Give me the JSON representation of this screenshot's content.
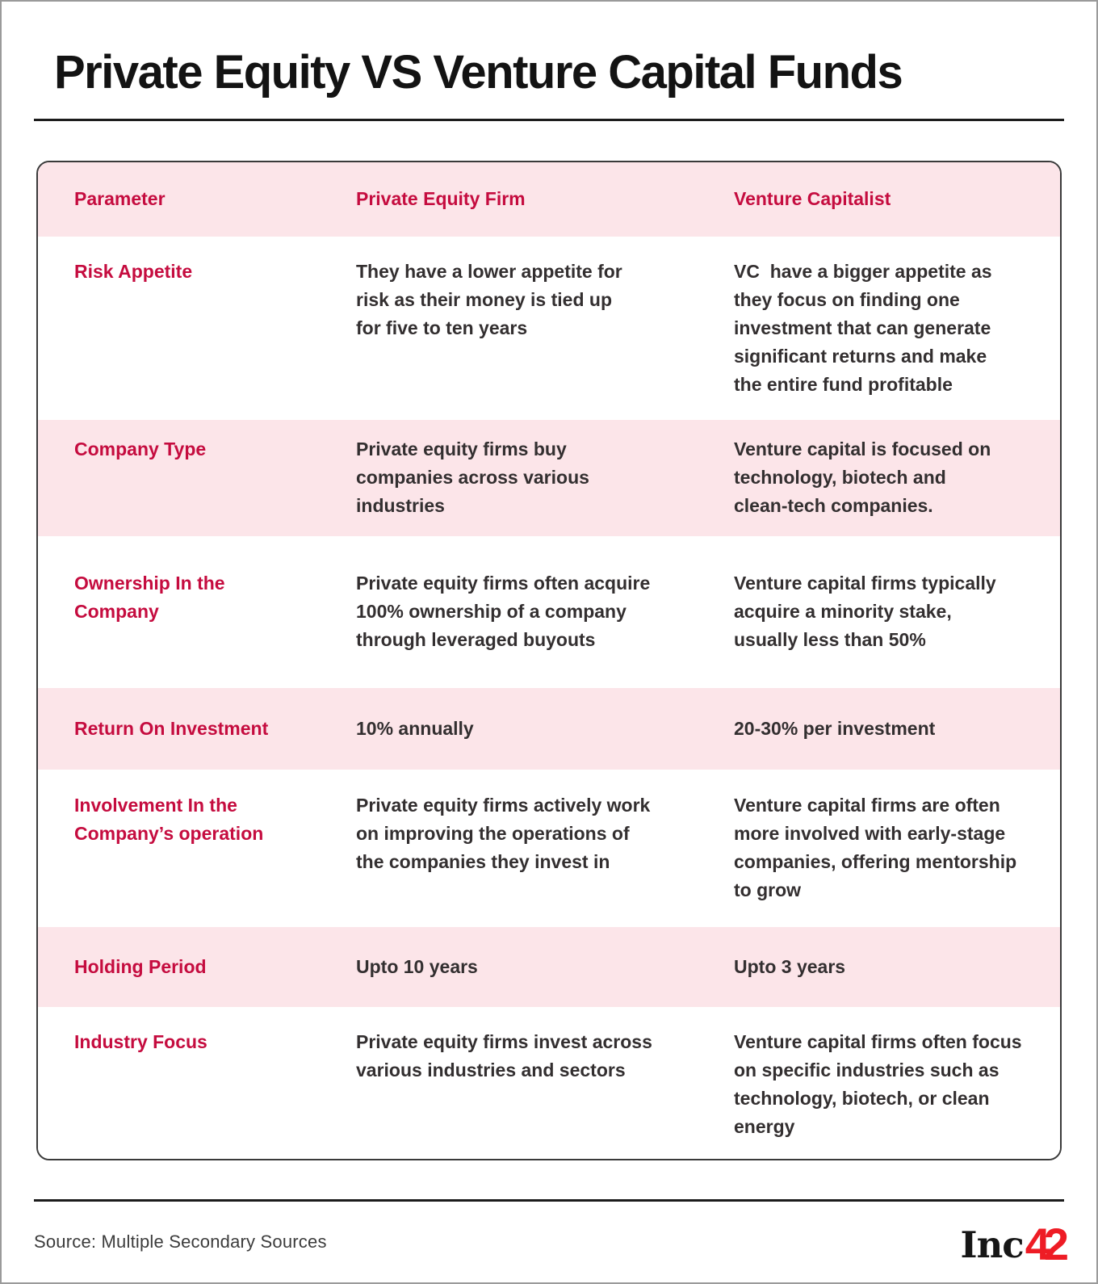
{
  "header": {
    "title": "Private Equity VS Venture Capital Funds"
  },
  "table": {
    "columns": [
      "Parameter",
      "Private Equity Firm",
      "Venture Capitalist"
    ],
    "rows": [
      {
        "label": "Risk Appetite",
        "pe": "They have a lower appetite for\nrisk as their money is tied up\nfor five to ten years",
        "vc": "VC  have a bigger appetite as\nthey focus on finding one\ninvestment that can generate\nsignificant returns and make\nthe entire fund profitable"
      },
      {
        "label": "Company Type",
        "pe": "Private equity firms buy\ncompanies across various\nindustries",
        "vc": "Venture capital is focused on\ntechnology, biotech and\nclean-tech companies."
      },
      {
        "label": "Ownership In the\nCompany",
        "pe": "Private equity firms often acquire\n100% ownership of a company\nthrough leveraged buyouts",
        "vc": "Venture capital firms typically\nacquire a minority stake,\nusually less than 50%"
      },
      {
        "label": "Return On Investment",
        "pe": "10% annually",
        "vc": "20-30% per investment"
      },
      {
        "label": "Involvement In the\nCompany’s operation",
        "pe": "Private equity firms actively work\non improving the operations of\nthe companies they invest in",
        "vc": "Venture capital firms are often\nmore involved with early-stage\ncompanies, offering mentorship\nto grow"
      },
      {
        "label": "Holding Period",
        "pe": "Upto 10 years",
        "vc": "Upto 3 years"
      },
      {
        "label": "Industry Focus",
        "pe": "Private equity firms invest across\nvarious industries and sectors",
        "vc": "Venture capital firms often focus\non specific industries such as\ntechnology, biotech, or clean\nenergy"
      }
    ]
  },
  "footer": {
    "source": "Source: Multiple Secondary Sources",
    "logo_text": "Inc",
    "logo_number": "42"
  },
  "colors": {
    "accent_red": "#c50c3f",
    "row_pink": "#fce5e9",
    "logo_red": "#ee1c25",
    "body_text": "#332f30"
  }
}
